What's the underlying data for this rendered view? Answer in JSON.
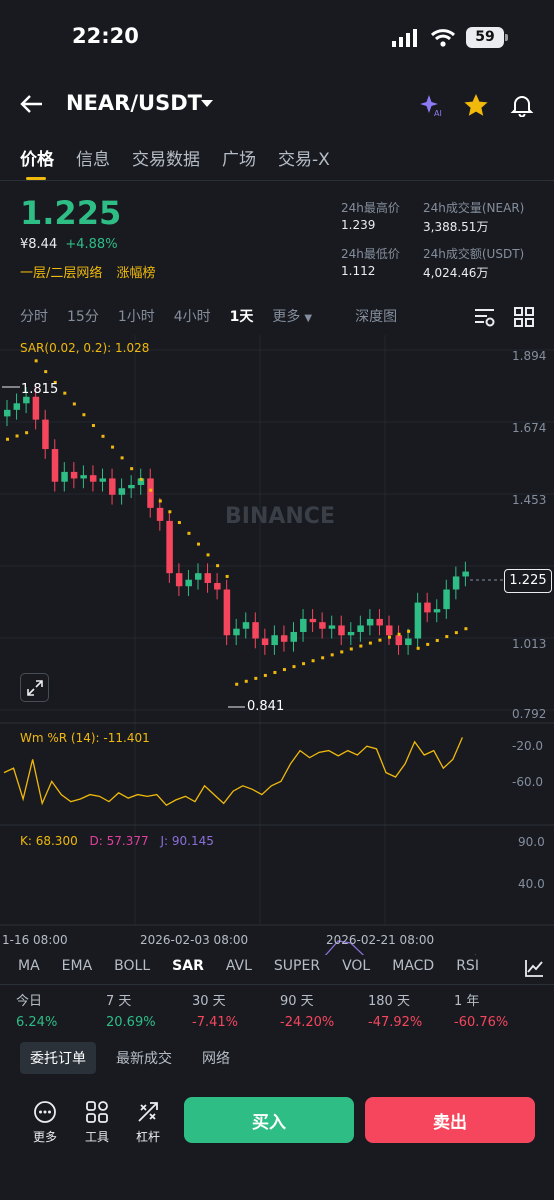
{
  "status": {
    "time": "22:20",
    "battery": "59"
  },
  "header": {
    "pair": "NEAR/USDT"
  },
  "tabs": [
    "价格",
    "信息",
    "交易数据",
    "广场",
    "交易-X"
  ],
  "price": {
    "last": "1.225",
    "fiat": "¥8.44",
    "change": "+4.88%",
    "tag1": "一层/二层网络",
    "tag2": "涨幅榜"
  },
  "stats": {
    "high_label": "24h最高价",
    "high": "1.239",
    "vol_label": "24h成交量(NEAR)",
    "vol": "3,388.51万",
    "low_label": "24h最低价",
    "low": "1.112",
    "amt_label": "24h成交额(USDT)",
    "amt": "4,024.46万"
  },
  "intervals": [
    "分时",
    "15分",
    "1小时",
    "4小时",
    "1天",
    "更多",
    "深度图"
  ],
  "chart": {
    "sar_label": "SAR(0.02, 0.2): 1.028",
    "y_ticks": [
      "1.894",
      "1.674",
      "1.453",
      "1.013",
      "0.792"
    ],
    "current_price": "1.225",
    "high_mark": "1.815",
    "low_mark": "0.841",
    "watermark": "BINANCE",
    "wr_label": "Wm %R (14): -11.401",
    "wr_ticks": [
      "-20.0",
      "-60.0"
    ],
    "kdj": {
      "k": "K: 68.300",
      "d": "D: 57.377",
      "j": "J: 90.145"
    },
    "kdj_ticks": [
      "90.0",
      "40.0"
    ],
    "x_ticks": [
      "1-16 08:00",
      "2026-02-03 08:00",
      "2026-02-21 08:00"
    ],
    "colors": {
      "up": "#2ebd85",
      "down": "#f6465d",
      "sar": "#f0b90b",
      "k": "#f0b90b",
      "d": "#e040a0",
      "j": "#8b6fd6"
    }
  },
  "indicator_tabs": [
    "MA",
    "EMA",
    "BOLL",
    "SAR",
    "AVL",
    "SUPER",
    "VOL",
    "MACD",
    "RSI"
  ],
  "performance": [
    {
      "label": "今日",
      "value": "6.24%",
      "dir": "up"
    },
    {
      "label": "7 天",
      "value": "20.69%",
      "dir": "up"
    },
    {
      "label": "30 天",
      "value": "-7.41%",
      "dir": "down"
    },
    {
      "label": "90 天",
      "value": "-24.20%",
      "dir": "down"
    },
    {
      "label": "180 天",
      "value": "-47.92%",
      "dir": "down"
    },
    {
      "label": "1 年",
      "value": "-60.76%",
      "dir": "down"
    }
  ],
  "bottom_tabs": [
    "委托订单",
    "最新成交",
    "网络"
  ],
  "tools": [
    "更多",
    "工具",
    "杠杆"
  ],
  "actions": {
    "buy": "买入",
    "sell": "卖出"
  }
}
